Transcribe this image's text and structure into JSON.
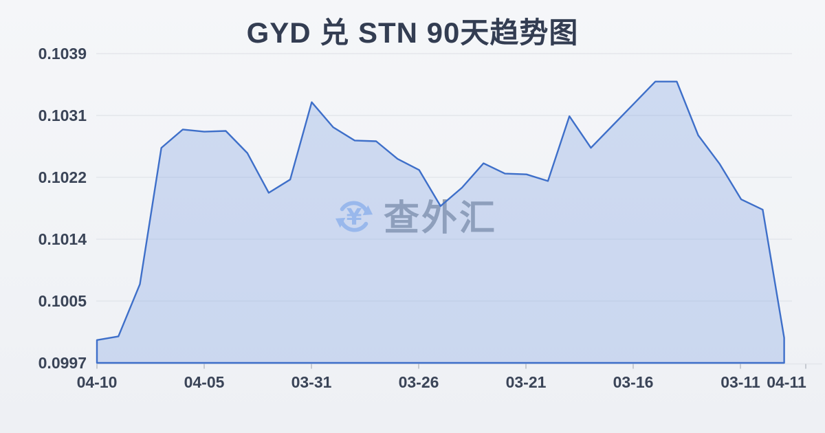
{
  "title": "GYD 兑 STN 90天趋势图",
  "watermark": {
    "icon": "currency-exchange-icon",
    "text": "查外汇"
  },
  "colors": {
    "background": "#f1f3f6",
    "title_text": "#333d52",
    "axis_text": "#3a4457",
    "grid": "#e3e6eb",
    "tick": "#c6cad1",
    "line": "#3e6fc9",
    "fill": "#789be1",
    "fill_opacity": 0.3,
    "watermark_blue": "#a8c5f1",
    "watermark_gray": "#99a1ac"
  },
  "chart_data": {
    "type": "area",
    "title": "GYD 兑 STN 90天趋势图",
    "series_name": "GYD/STN",
    "x": [
      "04-10",
      "04-09",
      "04-08",
      "04-07",
      "04-06",
      "04-05",
      "04-04",
      "04-03",
      "04-02",
      "04-01",
      "03-31",
      "03-30",
      "03-29",
      "03-28",
      "03-27",
      "03-26",
      "03-25",
      "03-24",
      "03-23",
      "03-22",
      "03-21",
      "03-20",
      "03-19",
      "03-18",
      "03-17",
      "03-16",
      "03-15",
      "03-14",
      "03-13",
      "03-12",
      "03-11",
      "03-10",
      "04-11"
    ],
    "values": [
      0.10001,
      0.10006,
      0.10077,
      0.10262,
      0.10287,
      0.10284,
      0.10285,
      0.10255,
      0.10201,
      0.10219,
      0.10324,
      0.1029,
      0.10272,
      0.10271,
      0.10247,
      0.10232,
      0.10183,
      0.10208,
      0.10241,
      0.10227,
      0.10226,
      0.10217,
      0.10305,
      0.10262,
      0.10292,
      0.10322,
      0.10352,
      0.10352,
      0.10279,
      0.1024,
      0.10192,
      0.10178,
      0.10004
    ],
    "x_tick_labels": [
      "04-10",
      "04-05",
      "03-31",
      "03-26",
      "03-21",
      "03-16",
      "03-11",
      "04-11"
    ],
    "y_tick_labels": [
      "0.1039",
      "0.1031",
      "0.1022",
      "0.1014",
      "0.1005",
      "0.0997"
    ],
    "ylim": [
      0.0997,
      0.1039
    ],
    "xlabel": "",
    "ylabel": "",
    "grid": "horizontal",
    "legend": "none"
  }
}
